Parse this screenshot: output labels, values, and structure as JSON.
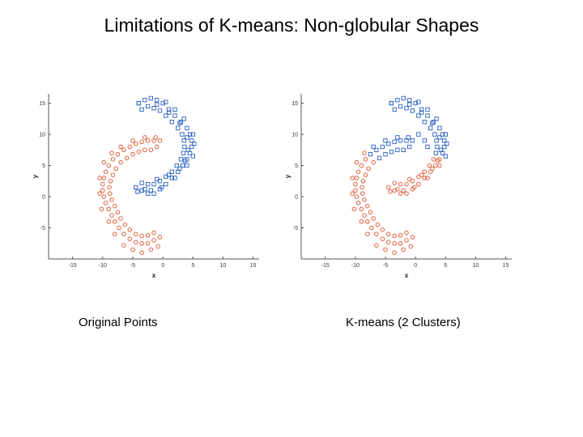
{
  "title": "Limitations of K-means: Non-globular Shapes",
  "captions": {
    "left": "Original Points",
    "right": "K-means (2 Clusters)"
  },
  "colors": {
    "blue": "#2a5fc4",
    "red": "#e0502a"
  },
  "chart_data": [
    {
      "type": "scatter",
      "xlabel": "x",
      "ylabel": "y",
      "xlim": [
        -19,
        16
      ],
      "ylim": [
        -10,
        16.5
      ],
      "xticks": [
        -15,
        -10,
        -5,
        0,
        5,
        10,
        15
      ],
      "yticks": [
        -5,
        0,
        5,
        10,
        15
      ],
      "grid": false,
      "series": [
        {
          "color": "#2a5fc4",
          "marker": "square",
          "points": [
            [
              -4,
              15
            ],
            [
              -3,
              15.5
            ],
            [
              -2,
              15.8
            ],
            [
              -1,
              15.5
            ],
            [
              0,
              15
            ],
            [
              1,
              14
            ],
            [
              2,
              13
            ],
            [
              3,
              12
            ],
            [
              4,
              11
            ],
            [
              4.5,
              10
            ],
            [
              4.8,
              9
            ],
            [
              4.8,
              8
            ],
            [
              4.5,
              7
            ],
            [
              4,
              6
            ],
            [
              3.3,
              5
            ],
            [
              2.5,
              4
            ],
            [
              1.5,
              3
            ],
            [
              0.5,
              2
            ],
            [
              -0.5,
              1.2
            ],
            [
              -1.5,
              0.5
            ],
            [
              -2.5,
              0.5
            ],
            [
              -3.5,
              1
            ],
            [
              -4,
              15
            ],
            [
              -3.5,
              14
            ],
            [
              -2.5,
              14.5
            ],
            [
              -1.5,
              14.2
            ],
            [
              -0.5,
              13.8
            ],
            [
              0.5,
              13
            ],
            [
              1.5,
              12
            ],
            [
              2.5,
              11
            ],
            [
              3.2,
              10
            ],
            [
              3.5,
              9
            ],
            [
              3.6,
              8
            ],
            [
              3.4,
              7
            ],
            [
              3,
              6
            ],
            [
              2.3,
              5
            ],
            [
              1.5,
              4
            ],
            [
              0.5,
              3.2
            ],
            [
              -0.5,
              2.5
            ],
            [
              -1.5,
              2
            ],
            [
              -2.5,
              2
            ],
            [
              -3.5,
              2.2
            ],
            [
              -4.5,
              1.5
            ],
            [
              0.5,
              15.2
            ],
            [
              2,
              14
            ],
            [
              3.5,
              12.5
            ],
            [
              5,
              10
            ],
            [
              5.2,
              8.5
            ],
            [
              5,
              6.5
            ],
            [
              4,
              5
            ],
            [
              2,
              3
            ],
            [
              -0.2,
              1.5
            ],
            [
              -2,
              1
            ],
            [
              -1,
              14.8
            ],
            [
              1,
              13.5
            ],
            [
              2.8,
              11.8
            ],
            [
              4,
              9.5
            ],
            [
              4.2,
              7.5
            ],
            [
              3.7,
              5.8
            ],
            [
              2.8,
              4.5
            ],
            [
              1,
              3.5
            ],
            [
              -1,
              2.8
            ],
            [
              -3,
              1.2
            ],
            [
              -4.2,
              0.8
            ]
          ]
        },
        {
          "color": "#e0502a",
          "marker": "circle",
          "points": [
            [
              -0.5,
              9
            ],
            [
              -1.5,
              9
            ],
            [
              -2.5,
              9
            ],
            [
              -3.5,
              8.8
            ],
            [
              -4.5,
              8.5
            ],
            [
              -5.5,
              8
            ],
            [
              -6.5,
              7.5
            ],
            [
              -7.5,
              6.8
            ],
            [
              -8.3,
              6
            ],
            [
              -9,
              5
            ],
            [
              -9.5,
              4
            ],
            [
              -9.8,
              3
            ],
            [
              -10,
              2
            ],
            [
              -10,
              1
            ],
            [
              -9.8,
              0
            ],
            [
              -9.5,
              -1
            ],
            [
              -9,
              -2
            ],
            [
              -8.5,
              -3
            ],
            [
              -8,
              -4
            ],
            [
              -7.3,
              -5
            ],
            [
              -6.5,
              -6
            ],
            [
              -5.5,
              -6.8
            ],
            [
              -4.5,
              -7.3
            ],
            [
              -3.5,
              -7.5
            ],
            [
              -2.5,
              -7.5
            ],
            [
              -1.5,
              -7
            ],
            [
              -0.5,
              -6.5
            ],
            [
              -1,
              8
            ],
            [
              -2,
              7.5
            ],
            [
              -3,
              7.5
            ],
            [
              -4,
              7.2
            ],
            [
              -5,
              6.8
            ],
            [
              -6,
              6.2
            ],
            [
              -7,
              5.5
            ],
            [
              -7.8,
              4.5
            ],
            [
              -8.3,
              3.5
            ],
            [
              -8.7,
              2.5
            ],
            [
              -8.9,
              1.5
            ],
            [
              -8.8,
              0.5
            ],
            [
              -8.5,
              -0.5
            ],
            [
              -8,
              -1.5
            ],
            [
              -7.5,
              -2.5
            ],
            [
              -7,
              -3.5
            ],
            [
              -6.3,
              -4.5
            ],
            [
              -5.5,
              -5.3
            ],
            [
              -4.5,
              -6
            ],
            [
              -3.5,
              -6.3
            ],
            [
              -2.5,
              -6.2
            ],
            [
              -1.5,
              -5.8
            ],
            [
              -0.8,
              -8
            ],
            [
              -2,
              -8.5
            ],
            [
              -3.5,
              -9
            ],
            [
              -5,
              -8.5
            ],
            [
              -6.5,
              -7.8
            ],
            [
              -8,
              -6
            ],
            [
              -9,
              -4
            ],
            [
              -10.2,
              -2
            ],
            [
              -10.5,
              0.5
            ],
            [
              -10.5,
              3
            ],
            [
              -9.8,
              5.5
            ],
            [
              -8.5,
              7
            ],
            [
              -7,
              8
            ],
            [
              -5,
              9
            ],
            [
              -3,
              9.5
            ],
            [
              -1.2,
              9.5
            ]
          ]
        }
      ]
    },
    {
      "type": "scatter",
      "xlabel": "x",
      "ylabel": "y",
      "xlim": [
        -19,
        16
      ],
      "ylim": [
        -10,
        16.5
      ],
      "xticks": [
        -15,
        -10,
        -5,
        0,
        5,
        10,
        15
      ],
      "yticks": [
        -5,
        0,
        5,
        10,
        15
      ],
      "grid": false,
      "series": [
        {
          "color": "#2a5fc4",
          "marker": "square",
          "points": [
            [
              -4,
              15
            ],
            [
              -3,
              15.5
            ],
            [
              -2,
              15.8
            ],
            [
              -1,
              15.5
            ],
            [
              0,
              15
            ],
            [
              1,
              14
            ],
            [
              2,
              13
            ],
            [
              3,
              12
            ],
            [
              4,
              11
            ],
            [
              4.5,
              10
            ],
            [
              4.8,
              9
            ],
            [
              4.8,
              8
            ],
            [
              4.5,
              7
            ],
            [
              -4,
              15
            ],
            [
              -3.5,
              14
            ],
            [
              -2.5,
              14.5
            ],
            [
              -1.5,
              14.2
            ],
            [
              -0.5,
              13.8
            ],
            [
              0.5,
              13
            ],
            [
              1.5,
              12
            ],
            [
              2.5,
              11
            ],
            [
              3.2,
              10
            ],
            [
              3.5,
              9
            ],
            [
              3.6,
              8
            ],
            [
              3.4,
              7
            ],
            [
              0.5,
              15.2
            ],
            [
              2,
              14
            ],
            [
              3.5,
              12.5
            ],
            [
              5,
              10
            ],
            [
              5.2,
              8.5
            ],
            [
              5,
              6.5
            ],
            [
              -1,
              14.8
            ],
            [
              1,
              13.5
            ],
            [
              2.8,
              11.8
            ],
            [
              4,
              9.5
            ],
            [
              4.2,
              7.5
            ],
            [
              -0.5,
              9
            ],
            [
              -1.5,
              9
            ],
            [
              -2.5,
              9
            ],
            [
              -3.5,
              8.8
            ],
            [
              -4.5,
              8.5
            ],
            [
              -5.5,
              8
            ],
            [
              -6.5,
              7.5
            ],
            [
              -1,
              8
            ],
            [
              -2,
              7.5
            ],
            [
              -3,
              7.5
            ],
            [
              -4,
              7.2
            ],
            [
              -5,
              6.8
            ],
            [
              -6,
              6.2
            ],
            [
              -7,
              8
            ],
            [
              -5,
              9
            ],
            [
              -3,
              9.5
            ],
            [
              -1.2,
              9.5
            ],
            [
              0.5,
              10
            ],
            [
              1.5,
              9
            ],
            [
              2,
              8
            ],
            [
              -7.5,
              6.8
            ]
          ]
        },
        {
          "color": "#e0502a",
          "marker": "circle",
          "points": [
            [
              4,
              6
            ],
            [
              3.3,
              5
            ],
            [
              2.5,
              4
            ],
            [
              1.5,
              3
            ],
            [
              0.5,
              2
            ],
            [
              -0.5,
              1.2
            ],
            [
              -1.5,
              0.5
            ],
            [
              -2.5,
              0.5
            ],
            [
              -3.5,
              1
            ],
            [
              3,
              6
            ],
            [
              2.3,
              5
            ],
            [
              1.5,
              4
            ],
            [
              0.5,
              3.2
            ],
            [
              -0.5,
              2.5
            ],
            [
              -1.5,
              2
            ],
            [
              -2.5,
              2
            ],
            [
              -3.5,
              2.2
            ],
            [
              -4.5,
              1.5
            ],
            [
              4,
              5
            ],
            [
              2,
              3
            ],
            [
              -0.2,
              1.5
            ],
            [
              -2,
              1
            ],
            [
              3.7,
              5.8
            ],
            [
              2.8,
              4.5
            ],
            [
              1,
              3.5
            ],
            [
              -1,
              2.8
            ],
            [
              -3,
              1.2
            ],
            [
              -4.2,
              0.8
            ],
            [
              -8.3,
              6
            ],
            [
              -9,
              5
            ],
            [
              -9.5,
              4
            ],
            [
              -9.8,
              3
            ],
            [
              -10,
              2
            ],
            [
              -10,
              1
            ],
            [
              -9.8,
              0
            ],
            [
              -9.5,
              -1
            ],
            [
              -9,
              -2
            ],
            [
              -8.5,
              -3
            ],
            [
              -8,
              -4
            ],
            [
              -7.3,
              -5
            ],
            [
              -6.5,
              -6
            ],
            [
              -5.5,
              -6.8
            ],
            [
              -4.5,
              -7.3
            ],
            [
              -3.5,
              -7.5
            ],
            [
              -2.5,
              -7.5
            ],
            [
              -1.5,
              -7
            ],
            [
              -0.5,
              -6.5
            ],
            [
              -7,
              5.5
            ],
            [
              -7.8,
              4.5
            ],
            [
              -8.3,
              3.5
            ],
            [
              -8.7,
              2.5
            ],
            [
              -8.9,
              1.5
            ],
            [
              -8.8,
              0.5
            ],
            [
              -8.5,
              -0.5
            ],
            [
              -8,
              -1.5
            ],
            [
              -7.5,
              -2.5
            ],
            [
              -7,
              -3.5
            ],
            [
              -6.3,
              -4.5
            ],
            [
              -5.5,
              -5.3
            ],
            [
              -4.5,
              -6
            ],
            [
              -3.5,
              -6.3
            ],
            [
              -2.5,
              -6.2
            ],
            [
              -1.5,
              -5.8
            ],
            [
              -0.8,
              -8
            ],
            [
              -2,
              -8.5
            ],
            [
              -3.5,
              -9
            ],
            [
              -5,
              -8.5
            ],
            [
              -6.5,
              -7.8
            ],
            [
              -8,
              -6
            ],
            [
              -9,
              -4
            ],
            [
              -10.2,
              -2
            ],
            [
              -10.5,
              0.5
            ],
            [
              -10.5,
              3
            ],
            [
              -9.8,
              5.5
            ],
            [
              -8.5,
              7
            ]
          ]
        }
      ]
    }
  ]
}
